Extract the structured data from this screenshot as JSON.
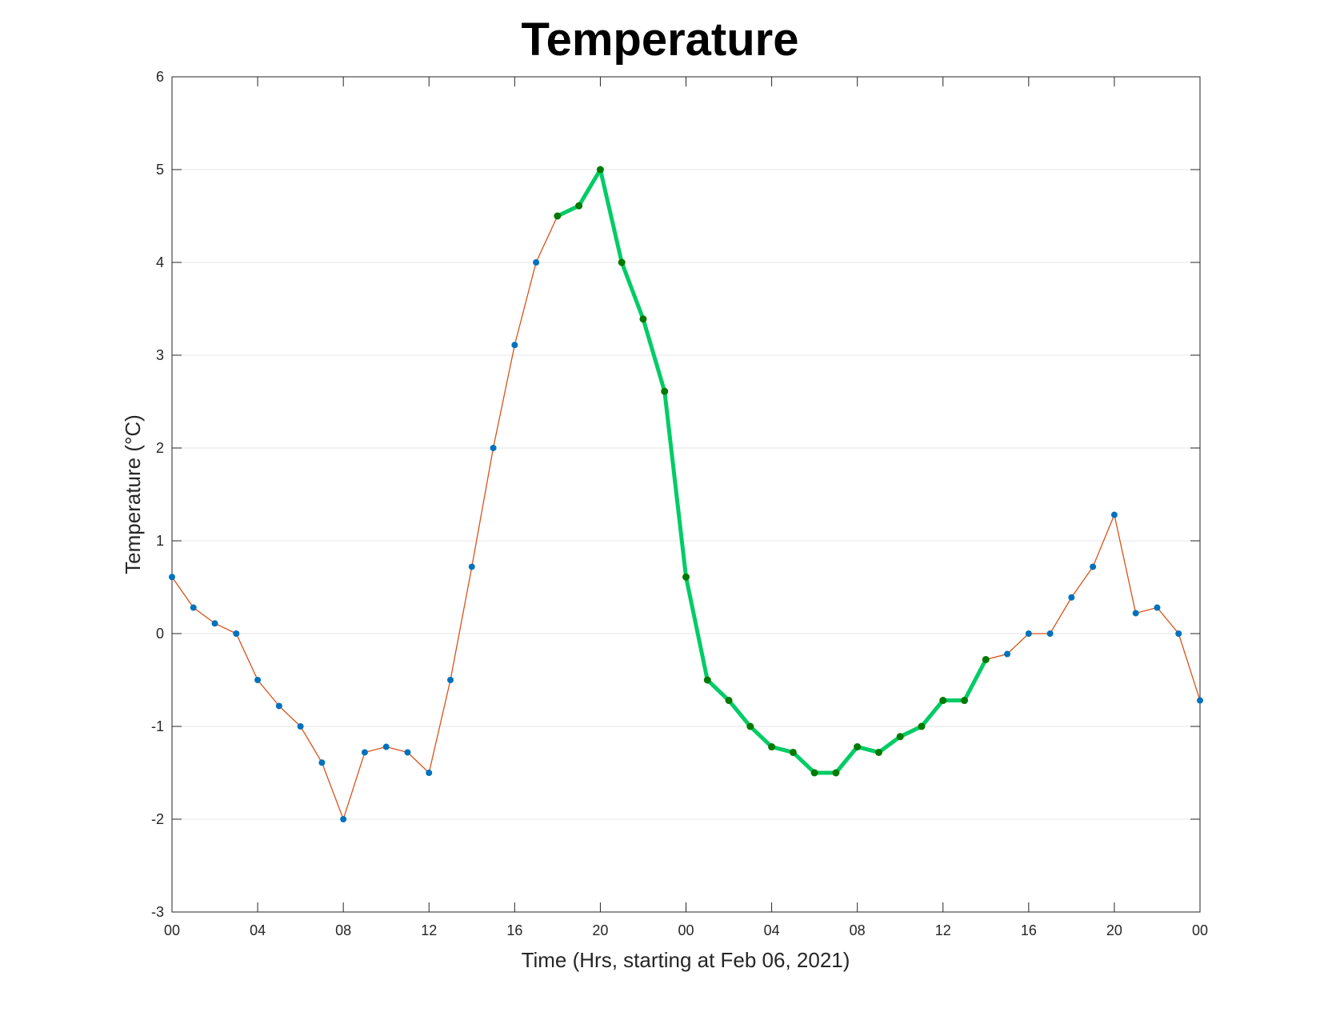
{
  "chart_data": {
    "type": "line",
    "title": "Temperature",
    "xlabel": "Time (Hrs, starting at Feb 06, 2021)",
    "ylabel": "Temperature (°C)",
    "ylim": [
      -3,
      6
    ],
    "xlim": [
      0,
      48
    ],
    "yticks": [
      -3,
      -2,
      -1,
      0,
      1,
      2,
      3,
      4,
      5,
      6
    ],
    "xticks": [
      0,
      4,
      8,
      12,
      16,
      20,
      24,
      28,
      32,
      36,
      40,
      44,
      48
    ],
    "xtick_labels": [
      "00",
      "04",
      "08",
      "12",
      "16",
      "20",
      "00",
      "04",
      "08",
      "12",
      "16",
      "20",
      "00"
    ],
    "grid": "horizontal",
    "x": [
      0,
      1,
      2,
      3,
      4,
      5,
      6,
      7,
      8,
      9,
      10,
      11,
      12,
      13,
      14,
      15,
      16,
      17,
      18,
      19,
      20,
      21,
      22,
      23,
      24,
      25,
      26,
      27,
      28,
      29,
      30,
      31,
      32,
      33,
      34,
      35,
      36,
      37,
      38,
      39,
      40,
      41,
      42,
      43,
      44,
      45,
      46,
      47,
      48
    ],
    "values": [
      0.61,
      0.28,
      0.11,
      0.0,
      -0.5,
      -0.78,
      -1.0,
      -1.39,
      -2.0,
      -1.28,
      -1.22,
      -1.28,
      -1.5,
      -0.5,
      0.72,
      2.0,
      3.11,
      4.0,
      4.5,
      4.61,
      5.0,
      4.0,
      3.39,
      2.61,
      0.61,
      -0.5,
      -0.72,
      -1.0,
      -1.22,
      -1.28,
      -1.5,
      -1.5,
      -1.22,
      -1.28,
      -1.11,
      -1.0,
      -0.72,
      -0.72,
      -0.28,
      -0.22,
      0.0,
      0.0,
      0.39,
      0.72,
      1.28,
      0.22,
      0.28,
      0.0,
      -0.72
    ],
    "highlight_range": [
      18,
      38
    ],
    "colors": {
      "base_line": "#d95319",
      "base_marker": "#0072bd",
      "highlight_line": "#00cc66",
      "highlight_marker": "#007a00",
      "grid": "#e6e6e6",
      "axis": "#262626"
    }
  }
}
